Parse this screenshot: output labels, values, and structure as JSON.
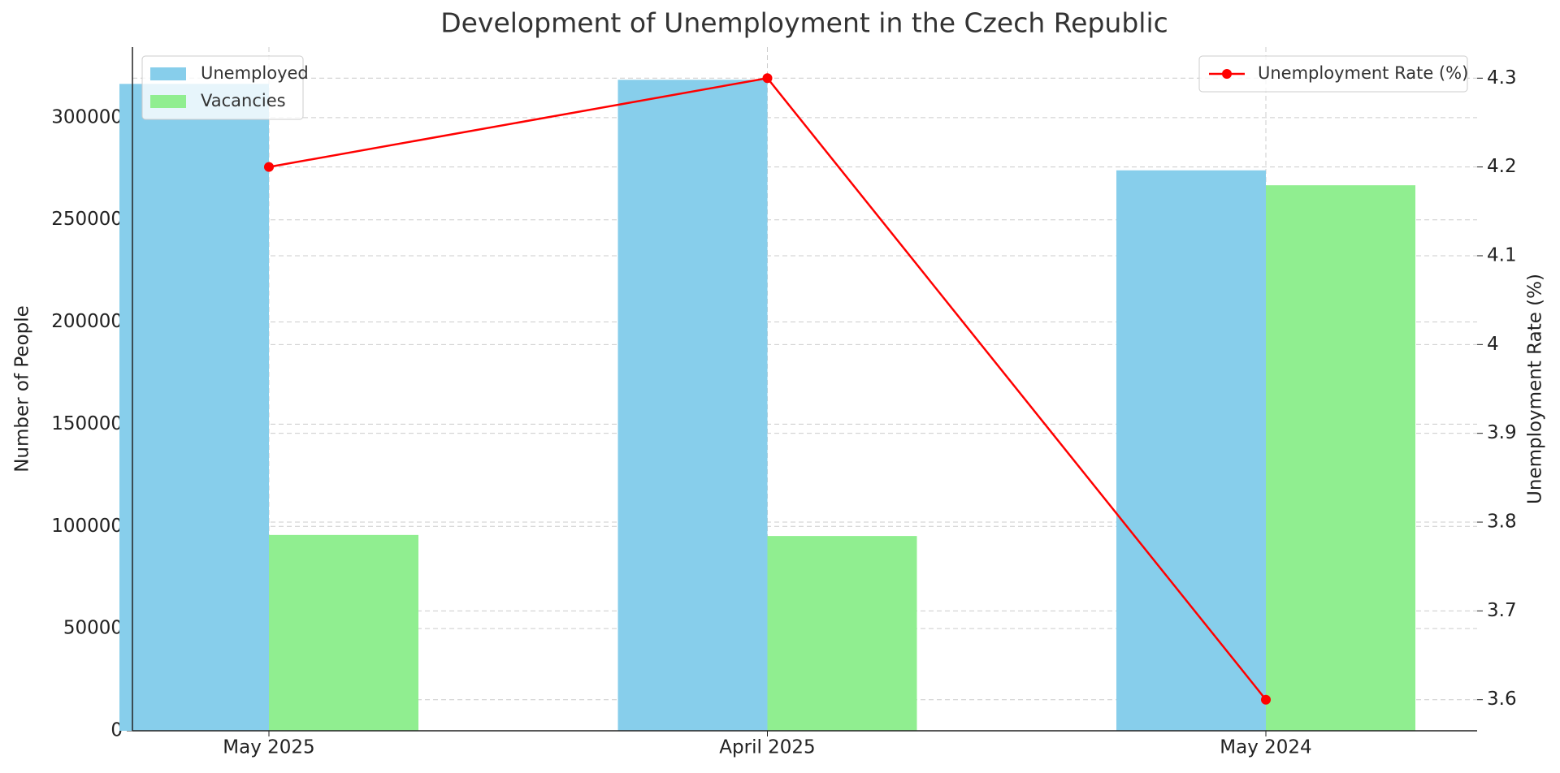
{
  "chart_data": {
    "type": "bar",
    "title": "Development of Unemployment in the Czech Republic",
    "categories": [
      "May 2025",
      "April 2025",
      "May 2024"
    ],
    "series": [
      {
        "name": "Unemployed",
        "color": "#87ceeb",
        "values": [
          316500,
          318500,
          274200
        ]
      },
      {
        "name": "Vacancies",
        "color": "#90ee90",
        "values": [
          95800,
          95300,
          266900
        ]
      },
      {
        "name": "Unemployment Rate (%)",
        "type": "line",
        "axis": "y2",
        "color": "#ff0000",
        "values": [
          4.2,
          4.3,
          3.6
        ]
      }
    ],
    "y_label": "Number of People",
    "y2_label": "Unemployment Rate (%)",
    "ylim": [
      0,
      334500
    ],
    "yticks": [
      0,
      50000,
      100000,
      150000,
      200000,
      250000,
      300000
    ],
    "y2lim": [
      3.565,
      4.335
    ],
    "y2ticks": [
      3.6,
      3.7,
      3.8,
      3.9,
      4.0,
      4.1,
      4.2,
      4.3
    ],
    "grid": true,
    "legend": "upper left",
    "y2_legend": "upper right"
  }
}
